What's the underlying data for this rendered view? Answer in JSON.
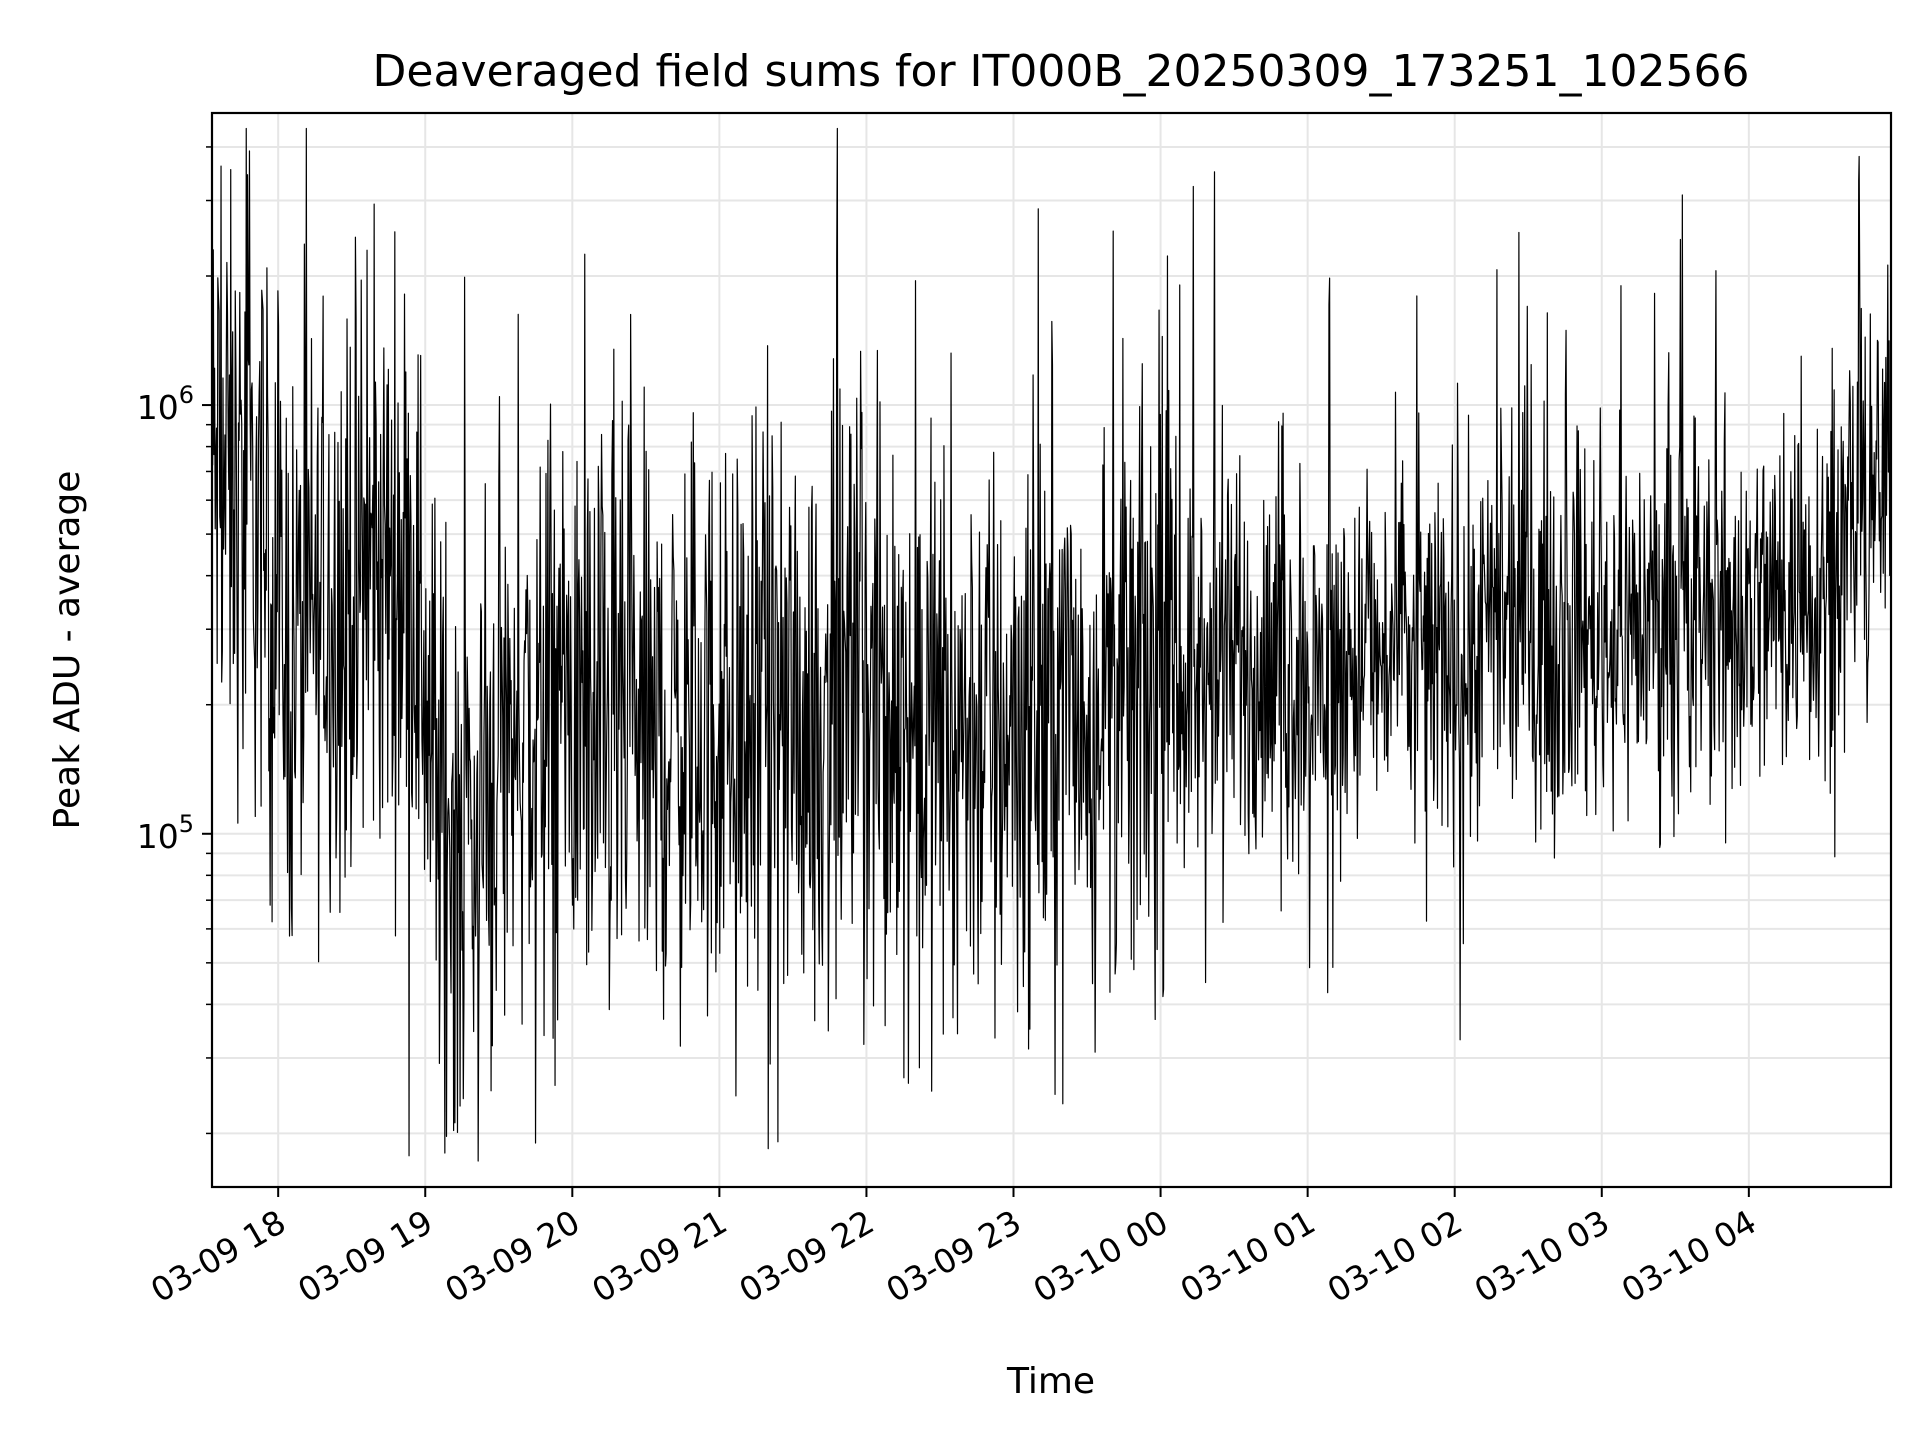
{
  "chart_data": {
    "type": "line",
    "title": "Deaveraged field sums for IT000B_20250309_173251_102566",
    "xlabel": "Time",
    "ylabel": "Peak ADU - average",
    "x_range": [
      "2025-03-09 17:33",
      "2025-03-10 04:58"
    ],
    "y_scale": "log",
    "y_range": [
      15000,
      4800000
    ],
    "grid": true,
    "line_color": "#000000",
    "grid_color": "#e6e6e6",
    "x_ticks": [
      {
        "label": "03-09 18",
        "value": "2025-03-09 18:00"
      },
      {
        "label": "03-09 19",
        "value": "2025-03-09 19:00"
      },
      {
        "label": "03-09 20",
        "value": "2025-03-09 20:00"
      },
      {
        "label": "03-09 21",
        "value": "2025-03-09 21:00"
      },
      {
        "label": "03-09 22",
        "value": "2025-03-09 22:00"
      },
      {
        "label": "03-09 23",
        "value": "2025-03-09 23:00"
      },
      {
        "label": "03-10 00",
        "value": "2025-03-10 00:00"
      },
      {
        "label": "03-10 01",
        "value": "2025-03-10 01:00"
      },
      {
        "label": "03-10 02",
        "value": "2025-03-10 02:00"
      },
      {
        "label": "03-10 03",
        "value": "2025-03-10 03:00"
      },
      {
        "label": "03-10 04",
        "value": "2025-03-10 04:00"
      }
    ],
    "y_ticks": [
      {
        "base": "10",
        "exp": "5",
        "value": 100000
      },
      {
        "base": "10",
        "exp": "6",
        "value": 1000000
      }
    ],
    "trend_points": [
      {
        "time": "2025-03-09 17:33",
        "median": 700000
      },
      {
        "time": "2025-03-09 17:50",
        "median": 550000
      },
      {
        "time": "2025-03-09 18:05",
        "median": 250000
      },
      {
        "time": "2025-03-09 18:20",
        "median": 350000
      },
      {
        "time": "2025-03-09 18:40",
        "median": 400000
      },
      {
        "time": "2025-03-09 18:55",
        "median": 450000
      },
      {
        "time": "2025-03-09 19:05",
        "median": 120000
      },
      {
        "time": "2025-03-09 19:20",
        "median": 100000
      },
      {
        "time": "2025-03-09 19:35",
        "median": 180000
      },
      {
        "time": "2025-03-09 19:55",
        "median": 180000
      },
      {
        "time": "2025-03-09 20:30",
        "median": 170000
      },
      {
        "time": "2025-03-09 21:00",
        "median": 170000
      },
      {
        "time": "2025-03-09 21:30",
        "median": 190000
      },
      {
        "time": "2025-03-09 22:00",
        "median": 200000
      },
      {
        "time": "2025-03-09 22:30",
        "median": 175000
      },
      {
        "time": "2025-03-09 23:00",
        "median": 180000
      },
      {
        "time": "2025-03-09 23:30",
        "median": 210000
      },
      {
        "time": "2025-03-10 00:00",
        "median": 230000
      },
      {
        "time": "2025-03-10 00:30",
        "median": 240000
      },
      {
        "time": "2025-03-10 01:00",
        "median": 230000
      },
      {
        "time": "2025-03-10 01:30",
        "median": 260000
      },
      {
        "time": "2025-03-10 02:00",
        "median": 270000
      },
      {
        "time": "2025-03-10 02:30",
        "median": 300000
      },
      {
        "time": "2025-03-10 03:00",
        "median": 300000
      },
      {
        "time": "2025-03-10 03:30",
        "median": 320000
      },
      {
        "time": "2025-03-10 04:00",
        "median": 330000
      },
      {
        "time": "2025-03-10 04:30",
        "median": 400000
      },
      {
        "time": "2025-03-10 04:58",
        "median": 700000
      }
    ],
    "notable_values": [
      {
        "time": "2025-03-09 19:08",
        "value": 18000
      },
      {
        "time": "2025-03-09 19:45",
        "value": 19000
      },
      {
        "time": "2025-03-10 00:22",
        "value": 3500000
      },
      {
        "time": "2025-03-10 04:45",
        "value": 3800000
      }
    ]
  }
}
